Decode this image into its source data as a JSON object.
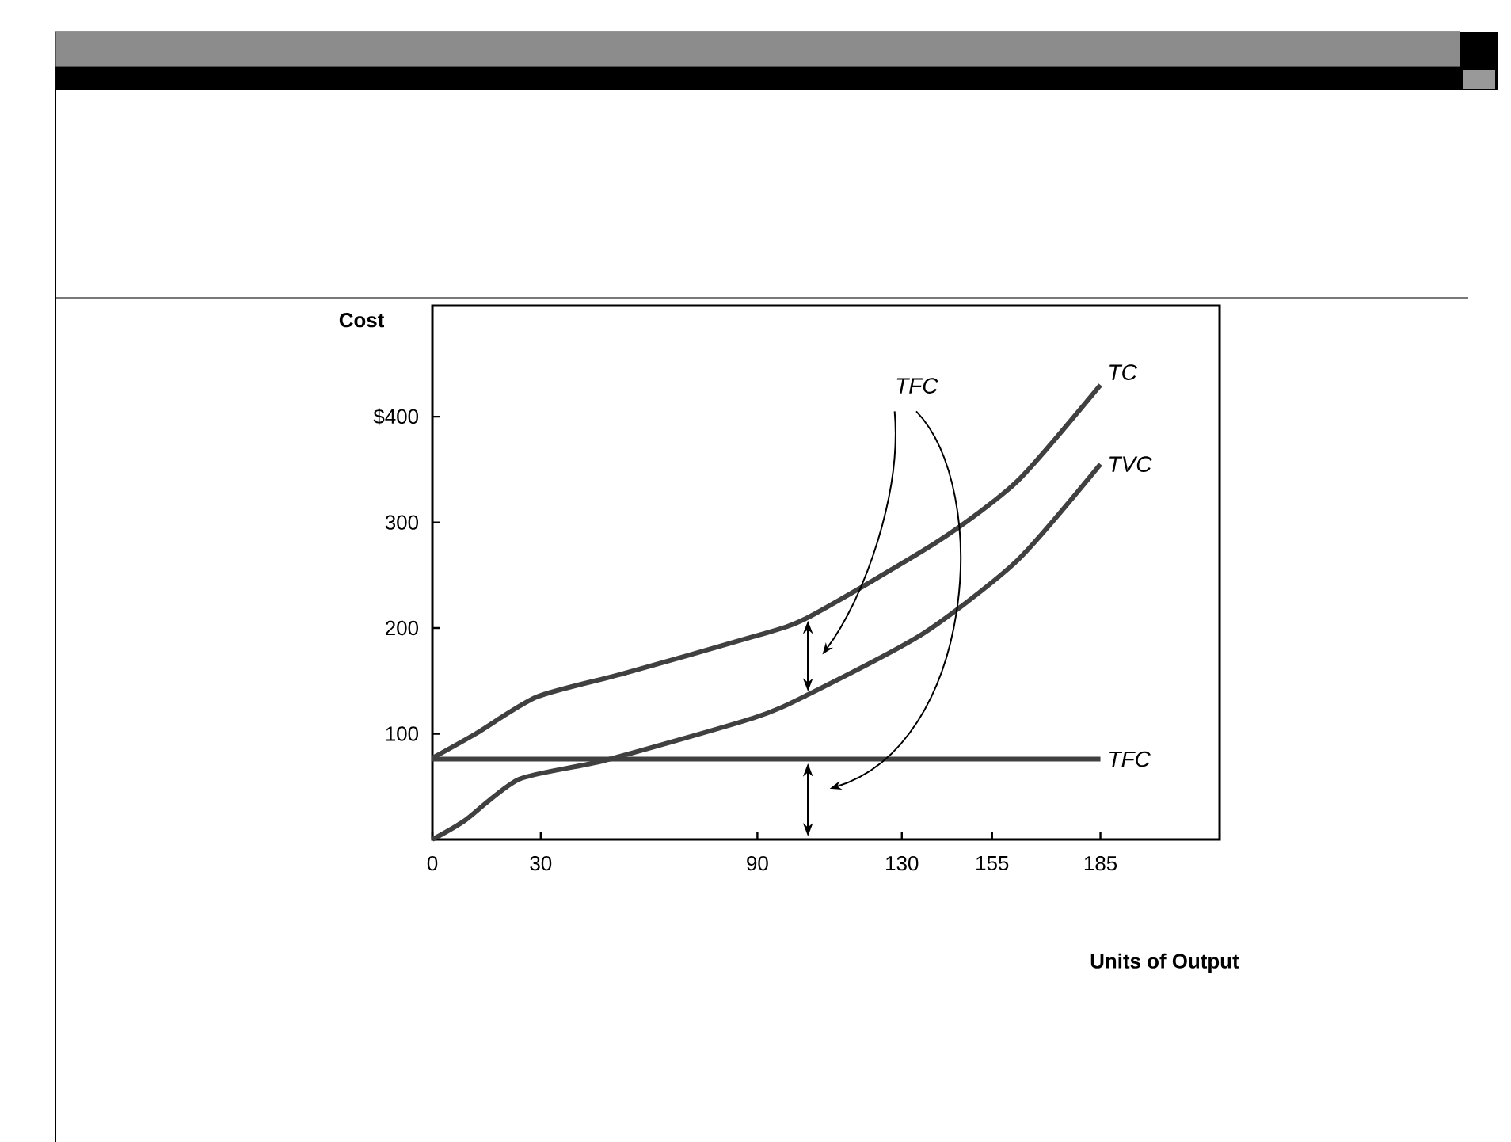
{
  "chart_data": {
    "type": "line",
    "xlabel": "Units of Output",
    "ylabel": "Cost",
    "series": [
      {
        "name": "TC",
        "color": "#404040",
        "x": [
          0,
          12,
          29,
          53,
          89,
          104,
          140,
          162,
          185
        ],
        "values": [
          77,
          100,
          135,
          157,
          192,
          210,
          282,
          339,
          430
        ]
      },
      {
        "name": "TVC",
        "color": "#404040",
        "x": [
          0,
          9,
          24,
          48,
          89,
          104,
          136,
          162,
          185
        ],
        "values": [
          0,
          18,
          57,
          75,
          115,
          137,
          195,
          264,
          355
        ]
      },
      {
        "name": "TFC",
        "color": "#404040",
        "x": [
          0,
          185
        ],
        "values": [
          76,
          76
        ]
      }
    ],
    "xlim": [
      0,
      218
    ],
    "ylim": [
      0,
      505
    ],
    "xticks": [
      0,
      30,
      90,
      130,
      155,
      185
    ],
    "yticks": [
      100,
      200,
      300,
      {
        "value": 400,
        "label": "$400"
      }
    ],
    "annotations": [
      "TFC"
    ],
    "grid": false,
    "legend": false,
    "marker": "none",
    "line_style": "solid"
  }
}
